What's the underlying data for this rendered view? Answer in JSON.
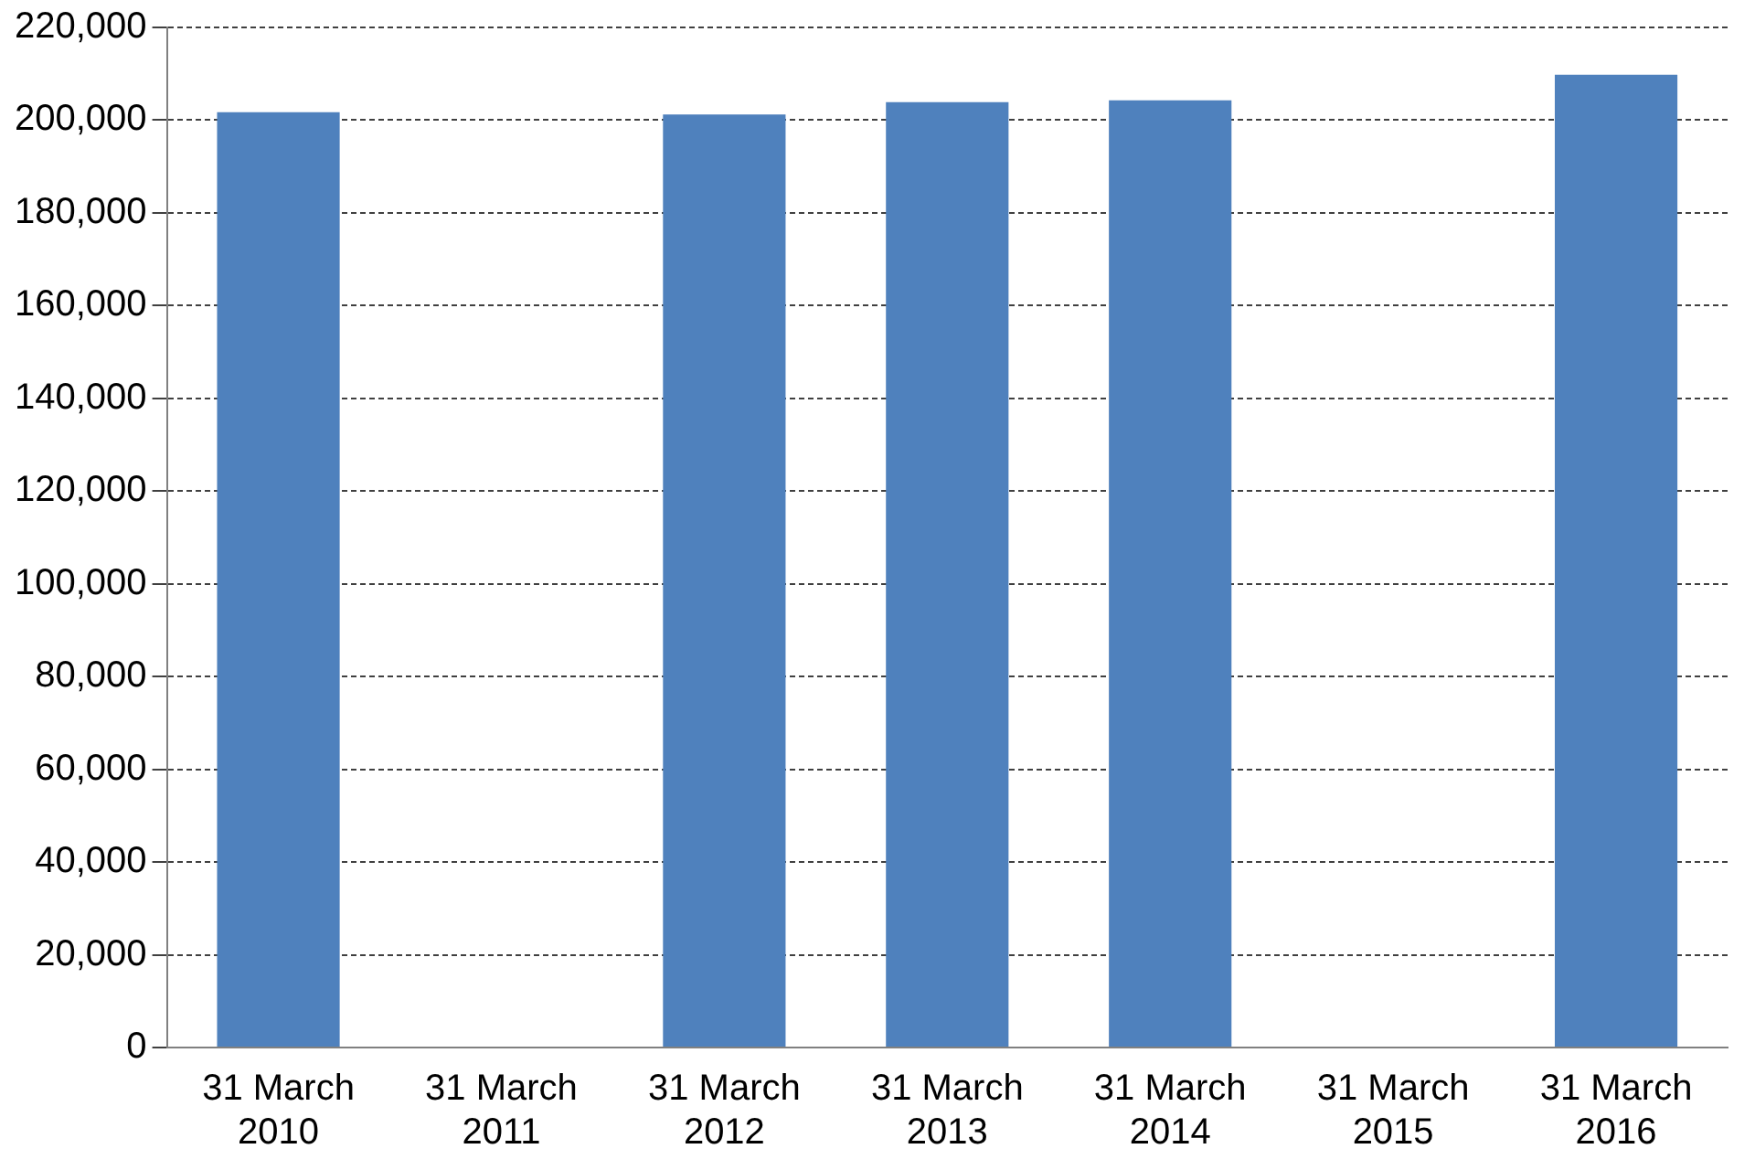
{
  "chart_data": {
    "type": "bar",
    "categories": [
      "31 March\n2010",
      "31 March\n2011",
      "31 March\n2012",
      "31 March\n2013",
      "31 March\n2014",
      "31 March\n2015",
      "31 March\n2016"
    ],
    "values": [
      201700,
      null,
      201200,
      203900,
      204300,
      null,
      209800
    ],
    "color": "#4f81bd",
    "ylim": [
      0,
      220000
    ],
    "yticks": [
      0,
      {
        "value": 20000,
        "label": "20,000"
      },
      {
        "value": 40000,
        "label": "40,000"
      },
      {
        "value": 60000,
        "label": "60,000"
      },
      {
        "value": 80000,
        "label": "80,000"
      },
      {
        "value": 100000,
        "label": "100,000"
      },
      {
        "value": 120000,
        "label": "120,000"
      },
      {
        "value": 140000,
        "label": "140,000"
      },
      {
        "value": 160000,
        "label": "160,000"
      },
      {
        "value": 180000,
        "label": "180,000"
      },
      {
        "value": 200000,
        "label": "200,000"
      },
      {
        "value": 220000,
        "label": "220,000"
      }
    ],
    "grid": "y",
    "legend": false
  }
}
